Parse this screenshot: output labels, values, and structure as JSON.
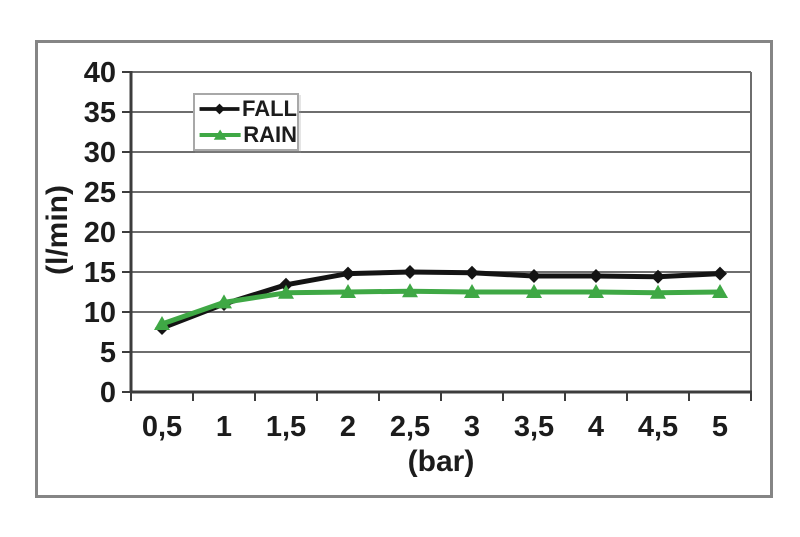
{
  "figure": {
    "background": "#ffffff",
    "frame_border_color": "#858585"
  },
  "chart_data": {
    "type": "line",
    "title": "",
    "xlabel": "(bar)",
    "ylabel": "(l/min)",
    "categories": [
      "0,5",
      "1",
      "1,5",
      "2",
      "2,5",
      "3",
      "3,5",
      "4",
      "4,5",
      "5"
    ],
    "x_numeric": [
      0.5,
      1,
      1.5,
      2,
      2.5,
      3,
      3.5,
      4,
      4.5,
      5
    ],
    "series": [
      {
        "name": "FALL",
        "color": "#141414",
        "marker": "diamond",
        "values": [
          8.0,
          11.0,
          13.4,
          14.8,
          15.0,
          14.9,
          14.5,
          14.5,
          14.4,
          14.8
        ]
      },
      {
        "name": "RAIN",
        "color": "#3fa845",
        "marker": "triangle",
        "values": [
          8.5,
          11.2,
          12.4,
          12.5,
          12.6,
          12.5,
          12.5,
          12.5,
          12.4,
          12.5
        ]
      }
    ],
    "ylim": [
      0,
      40
    ],
    "yticks": [
      0,
      5,
      10,
      15,
      20,
      25,
      30,
      35,
      40
    ],
    "grid": true,
    "grid_color": "#6e6e6e",
    "axis_color": "#3c3c3c",
    "legend_position": "upper-left-inside"
  }
}
